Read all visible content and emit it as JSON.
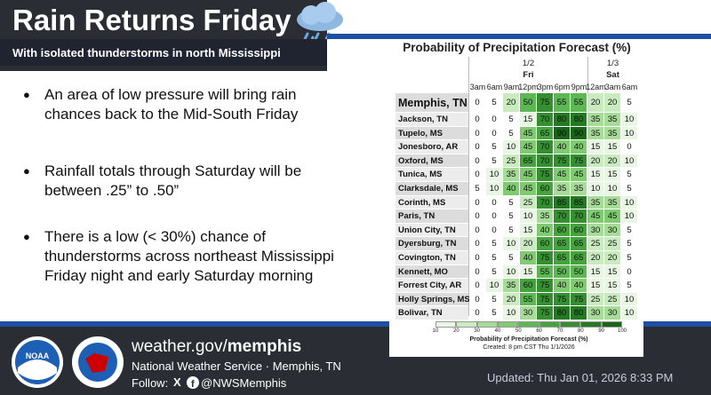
{
  "header": {
    "title": "Rain Returns Friday",
    "subtitle": "With isolated thunderstorms in north Mississippi"
  },
  "bullets": [
    "An area of low pressure will bring rain chances back to the Mid-South Friday",
    "Rainfall totals through Saturday will be between .25” to .50”",
    "There is a low (< 30%) chance of thunderstorms across northeast Mississippi Friday night and early Saturday morning"
  ],
  "table": {
    "title": "Probability of Precipitation Forecast (%)",
    "dates": [
      {
        "date": "1/2",
        "day": "Fri"
      },
      {
        "date": "1/3",
        "day": "Sat"
      }
    ],
    "times": [
      "3am",
      "6am",
      "9am",
      "12pm",
      "3pm",
      "6pm",
      "9pm",
      "12am",
      "3am",
      "6am"
    ],
    "rows": [
      {
        "city": "Memphis, TN",
        "values": [
          0,
          5,
          20,
          50,
          75,
          55,
          55,
          20,
          20,
          5
        ]
      },
      {
        "city": "Jackson, TN",
        "values": [
          0,
          0,
          5,
          15,
          70,
          80,
          80,
          35,
          35,
          10
        ]
      },
      {
        "city": "Tupelo, MS",
        "values": [
          0,
          0,
          5,
          45,
          65,
          90,
          90,
          35,
          35,
          10
        ]
      },
      {
        "city": "Jonesboro, AR",
        "values": [
          0,
          5,
          10,
          45,
          70,
          40,
          40,
          15,
          15,
          0
        ]
      },
      {
        "city": "Oxford, MS",
        "values": [
          0,
          5,
          25,
          65,
          70,
          75,
          75,
          20,
          20,
          10
        ]
      },
      {
        "city": "Tunica, MS",
        "values": [
          0,
          10,
          35,
          45,
          75,
          45,
          45,
          15,
          15,
          5
        ]
      },
      {
        "city": "Clarksdale, MS",
        "values": [
          5,
          10,
          40,
          45,
          60,
          35,
          35,
          10,
          10,
          5
        ]
      },
      {
        "city": "Corinth, MS",
        "values": [
          0,
          0,
          5,
          25,
          70,
          85,
          85,
          35,
          35,
          10
        ]
      },
      {
        "city": "Paris, TN",
        "values": [
          0,
          0,
          5,
          10,
          35,
          70,
          70,
          45,
          45,
          10
        ]
      },
      {
        "city": "Union City, TN",
        "values": [
          0,
          0,
          5,
          15,
          40,
          60,
          60,
          30,
          30,
          5
        ]
      },
      {
        "city": "Dyersburg, TN",
        "values": [
          0,
          5,
          10,
          20,
          60,
          65,
          65,
          25,
          25,
          5
        ]
      },
      {
        "city": "Covington, TN",
        "values": [
          0,
          5,
          5,
          40,
          75,
          65,
          65,
          20,
          20,
          5
        ]
      },
      {
        "city": "Kennett, MO",
        "values": [
          0,
          5,
          10,
          15,
          55,
          50,
          50,
          15,
          15,
          0
        ]
      },
      {
        "city": "Forrest City, AR",
        "values": [
          0,
          10,
          35,
          60,
          75,
          40,
          40,
          15,
          15,
          5
        ]
      },
      {
        "city": "Holly Springs, MS",
        "values": [
          0,
          5,
          20,
          55,
          75,
          75,
          75,
          25,
          25,
          10
        ]
      },
      {
        "city": "Bolivar, TN",
        "values": [
          0,
          5,
          10,
          30,
          75,
          80,
          80,
          30,
          30,
          10
        ]
      }
    ],
    "legend": {
      "ticks": [
        10,
        20,
        30,
        40,
        50,
        60,
        70,
        80,
        90,
        100
      ],
      "colors": [
        "#e8f6e3",
        "#c9ebbf",
        "#a6dc98",
        "#7fcb70",
        "#5cb852",
        "#45a33e",
        "#348f30",
        "#237a22",
        "#176517"
      ],
      "caption": "Probability of Precipitation Forecast (%)",
      "created": "Created: 8 pm CST Thu 1/1/2026"
    }
  },
  "footer": {
    "url_prefix": "weather.gov/",
    "url_bold": "memphis",
    "org": "National Weather Service · Memphis, TN",
    "follow": "Follow:",
    "handle": "@NWSMemphis",
    "updated": "Updated: Thu Jan 01, 2026 8:33 PM"
  }
}
